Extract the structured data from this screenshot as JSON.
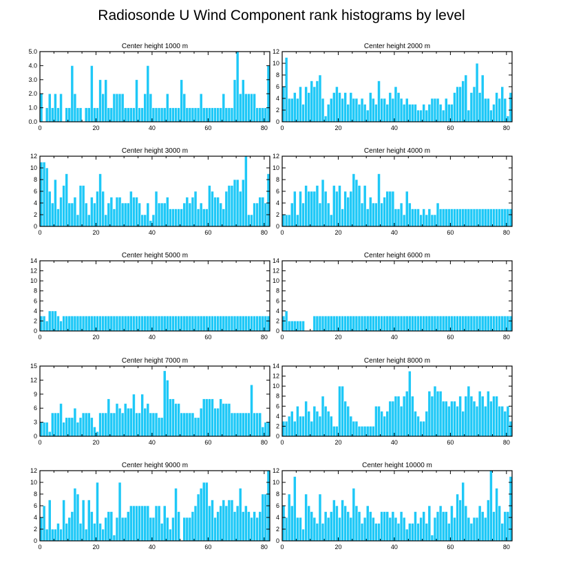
{
  "title": "Radiosonde U Wind Component rank histograms by level",
  "colors": {
    "bar": "#1ec8f7",
    "bar_edge": "#ffffff",
    "axis": "#000000"
  },
  "chart_data": [
    {
      "type": "bar",
      "title": "Center height 1000 m",
      "xlim": [
        0,
        82
      ],
      "xticks": [
        0,
        20,
        40,
        60,
        80
      ],
      "ylim": [
        0,
        5
      ],
      "yticks": [
        "0.0",
        "1.0",
        "2.0",
        "3.0",
        "4.0",
        "5.0"
      ],
      "ytick_values": [
        0,
        1,
        2,
        3,
        4,
        5
      ],
      "values": [
        2,
        0,
        1,
        2,
        1,
        2,
        1,
        2,
        0,
        1,
        1,
        4,
        2,
        1,
        1,
        0,
        1,
        1,
        4,
        1,
        1,
        3,
        2,
        3,
        1,
        1,
        2,
        2,
        2,
        2,
        1,
        1,
        1,
        1,
        3,
        1,
        1,
        2,
        4,
        2,
        1,
        1,
        1,
        1,
        1,
        2,
        1,
        1,
        1,
        1,
        3,
        2,
        1,
        1,
        1,
        1,
        1,
        2,
        1,
        1,
        1,
        1,
        1,
        1,
        1,
        2,
        1,
        1,
        1,
        3,
        5,
        2,
        3,
        2,
        2,
        2,
        2,
        1,
        1,
        1,
        1,
        4
      ]
    },
    {
      "type": "bar",
      "title": "Center height 2000 m",
      "xlim": [
        0,
        82
      ],
      "xticks": [
        0,
        20,
        40,
        60,
        80
      ],
      "ylim": [
        0,
        12
      ],
      "yticks": [
        "0",
        "2",
        "4",
        "6",
        "8",
        "10",
        "12"
      ],
      "ytick_values": [
        0,
        2,
        4,
        6,
        8,
        10,
        12
      ],
      "values": [
        6,
        11,
        4,
        4,
        5,
        4,
        6,
        3,
        6,
        5,
        7,
        6,
        7,
        8,
        4,
        1,
        3,
        4,
        5,
        6,
        5,
        4,
        5,
        3,
        5,
        4,
        4,
        3,
        4,
        3,
        2,
        5,
        4,
        3,
        7,
        4,
        4,
        3,
        5,
        4,
        6,
        5,
        4,
        3,
        4,
        3,
        3,
        3,
        2,
        2,
        3,
        2,
        3,
        4,
        4,
        4,
        3,
        2,
        4,
        3,
        3,
        5,
        6,
        6,
        7,
        8,
        2,
        5,
        6,
        10,
        5,
        8,
        4,
        4,
        2,
        3,
        5,
        4,
        6,
        4,
        1,
        5
      ]
    },
    {
      "type": "bar",
      "title": "Center height 3000 m",
      "xlim": [
        0,
        82
      ],
      "xticks": [
        0,
        20,
        40,
        60,
        80
      ],
      "ylim": [
        0,
        12
      ],
      "yticks": [
        "0",
        "2",
        "4",
        "6",
        "8",
        "10",
        "12"
      ],
      "ytick_values": [
        0,
        2,
        4,
        6,
        8,
        10,
        12
      ],
      "values": [
        11,
        11,
        10,
        6,
        4,
        8,
        3,
        5,
        7,
        9,
        4,
        4,
        5,
        2,
        7,
        7,
        4,
        2,
        5,
        4,
        6,
        9,
        6,
        2,
        4,
        5,
        3,
        5,
        5,
        4,
        4,
        4,
        6,
        5,
        5,
        4,
        2,
        2,
        4,
        1,
        2,
        6,
        4,
        4,
        4,
        5,
        3,
        3,
        3,
        3,
        3,
        4,
        5,
        4,
        5,
        6,
        3,
        4,
        3,
        3,
        7,
        6,
        5,
        5,
        4,
        3,
        6,
        7,
        7,
        8,
        8,
        6,
        8,
        12,
        2,
        2,
        4,
        4,
        5,
        5,
        4,
        9
      ]
    },
    {
      "type": "bar",
      "title": "Center height 4000 m",
      "xlim": [
        0,
        82
      ],
      "xticks": [
        0,
        20,
        40,
        60,
        80
      ],
      "ylim": [
        0,
        12
      ],
      "yticks": [
        "0",
        "2",
        "4",
        "6",
        "8",
        "10",
        "12"
      ],
      "ytick_values": [
        0,
        2,
        4,
        6,
        8,
        10,
        12
      ],
      "values": [
        2,
        2,
        2,
        4,
        6,
        2,
        6,
        4,
        7,
        6,
        6,
        6,
        7,
        4,
        8,
        6,
        4,
        2,
        7,
        6,
        7,
        3,
        6,
        5,
        6,
        9,
        8,
        7,
        4,
        7,
        3,
        5,
        4,
        4,
        9,
        4,
        5,
        6,
        6,
        6,
        3,
        3,
        4,
        2,
        6,
        4,
        3,
        3,
        3,
        2,
        3,
        2,
        3,
        2,
        2,
        4,
        3,
        3,
        3,
        3,
        3,
        3,
        3,
        3,
        3,
        3,
        3,
        3,
        3,
        3,
        3,
        3,
        3,
        3,
        3,
        3,
        3,
        3,
        3,
        3,
        3,
        3
      ]
    },
    {
      "type": "bar",
      "title": "Center height 5000 m",
      "xlim": [
        0,
        82
      ],
      "xticks": [
        0,
        20,
        40,
        60,
        80
      ],
      "ylim": [
        0,
        14
      ],
      "yticks": [
        "0",
        "2",
        "4",
        "6",
        "8",
        "10",
        "12",
        "14"
      ],
      "ytick_values": [
        0,
        2,
        4,
        6,
        8,
        10,
        12,
        14
      ],
      "values": [
        3,
        3,
        2,
        4,
        4,
        4,
        3,
        2,
        3,
        3,
        3,
        3,
        3,
        3,
        3,
        3,
        3,
        3,
        3,
        3,
        3,
        3,
        3,
        3,
        3,
        3,
        3,
        3,
        3,
        3,
        3,
        3,
        3,
        3,
        3,
        3,
        3,
        3,
        3,
        3,
        3,
        3,
        3,
        3,
        3,
        3,
        3,
        3,
        3,
        3,
        3,
        3,
        3,
        3,
        3,
        3,
        3,
        3,
        3,
        3,
        3,
        3,
        3,
        3,
        3,
        3,
        3,
        3,
        3,
        3,
        3,
        3,
        3,
        3,
        3,
        3,
        3,
        3,
        3,
        3,
        3,
        3
      ]
    },
    {
      "type": "bar",
      "title": "Center height 6000 m",
      "xlim": [
        0,
        82
      ],
      "xticks": [
        0,
        20,
        40,
        60,
        80
      ],
      "ylim": [
        0,
        14
      ],
      "yticks": [
        "0",
        "2",
        "4",
        "6",
        "8",
        "10",
        "12",
        "14"
      ],
      "ytick_values": [
        0,
        2,
        4,
        6,
        8,
        10,
        12,
        14
      ],
      "values": [
        3,
        4,
        2,
        2,
        2,
        2,
        2,
        2,
        0,
        0,
        0,
        3,
        3,
        3,
        3,
        3,
        3,
        3,
        3,
        3,
        3,
        3,
        3,
        3,
        3,
        3,
        3,
        3,
        3,
        3,
        3,
        3,
        3,
        3,
        3,
        3,
        3,
        3,
        3,
        3,
        3,
        3,
        3,
        3,
        3,
        3,
        3,
        3,
        3,
        3,
        3,
        3,
        3,
        3,
        3,
        3,
        3,
        3,
        3,
        3,
        3,
        3,
        3,
        3,
        3,
        3,
        3,
        3,
        3,
        3,
        3,
        3,
        3,
        3,
        3,
        3,
        3,
        3,
        3,
        3,
        3,
        3
      ]
    },
    {
      "type": "bar",
      "title": "Center height 7000 m",
      "xlim": [
        0,
        82
      ],
      "xticks": [
        0,
        20,
        40,
        60,
        80
      ],
      "ylim": [
        0,
        15
      ],
      "yticks": [
        "0",
        "3",
        "6",
        "9",
        "12",
        "15"
      ],
      "ytick_values": [
        0,
        3,
        6,
        9,
        12,
        15
      ],
      "values": [
        3,
        3,
        3,
        1,
        5,
        5,
        5,
        7,
        3,
        4,
        4,
        4,
        6,
        3,
        4,
        5,
        5,
        5,
        4,
        2,
        1,
        5,
        5,
        5,
        8,
        5,
        5,
        7,
        6,
        5,
        7,
        6,
        6,
        9,
        5,
        5,
        9,
        6,
        7,
        5,
        5,
        5,
        4,
        4,
        14,
        12,
        8,
        8,
        7,
        7,
        5,
        5,
        5,
        5,
        5,
        4,
        4,
        6,
        8,
        8,
        8,
        8,
        6,
        6,
        8,
        7,
        7,
        7,
        5,
        5,
        5,
        5,
        5,
        5,
        5,
        11,
        5,
        5,
        5,
        2,
        3,
        3
      ]
    },
    {
      "type": "bar",
      "title": "Center height 8000 m",
      "xlim": [
        0,
        82
      ],
      "xticks": [
        0,
        20,
        40,
        60,
        80
      ],
      "ylim": [
        0,
        14
      ],
      "yticks": [
        "0",
        "2",
        "4",
        "6",
        "8",
        "10",
        "12",
        "14"
      ],
      "ytick_values": [
        0,
        2,
        4,
        6,
        8,
        10,
        12,
        14
      ],
      "values": [
        3,
        3,
        4,
        5,
        3,
        6,
        4,
        4,
        7,
        5,
        3,
        6,
        5,
        4,
        8,
        6,
        5,
        4,
        2,
        2,
        10,
        10,
        7,
        6,
        4,
        3,
        3,
        2,
        2,
        2,
        2,
        2,
        2,
        6,
        6,
        5,
        4,
        5,
        7,
        7,
        8,
        8,
        6,
        8,
        9,
        13,
        8,
        5,
        4,
        3,
        3,
        5,
        9,
        8,
        10,
        9,
        9,
        7,
        7,
        6,
        7,
        7,
        6,
        8,
        5,
        8,
        10,
        8,
        7,
        6,
        9,
        8,
        6,
        9,
        7,
        8,
        8,
        6,
        6,
        5,
        6,
        3
      ]
    },
    {
      "type": "bar",
      "title": "Center height 9000 m",
      "xlim": [
        0,
        82
      ],
      "xticks": [
        0,
        20,
        40,
        60,
        80
      ],
      "ylim": [
        0,
        12
      ],
      "yticks": [
        "0",
        "2",
        "4",
        "6",
        "8",
        "10",
        "12"
      ],
      "ytick_values": [
        0,
        2,
        4,
        6,
        8,
        10,
        12
      ],
      "values": [
        4,
        6,
        2,
        7,
        2,
        2,
        3,
        2,
        7,
        3,
        4,
        5,
        9,
        8,
        3,
        7,
        2,
        7,
        5,
        3,
        10,
        3,
        2,
        4,
        5,
        5,
        1,
        4,
        10,
        4,
        4,
        5,
        6,
        6,
        6,
        6,
        6,
        6,
        6,
        4,
        4,
        6,
        6,
        3,
        6,
        4,
        2,
        4,
        9,
        5,
        0,
        4,
        4,
        4,
        5,
        6,
        8,
        9,
        10,
        10,
        6,
        7,
        4,
        5,
        6,
        7,
        6,
        7,
        7,
        5,
        6,
        9,
        5,
        6,
        5,
        4,
        5,
        4,
        5,
        8,
        8,
        12
      ]
    },
    {
      "type": "bar",
      "title": "Center height 10000 m",
      "xlim": [
        0,
        82
      ],
      "xticks": [
        0,
        20,
        40,
        60,
        80
      ],
      "ylim": [
        0,
        12
      ],
      "yticks": [
        "0",
        "2",
        "4",
        "6",
        "8",
        "10",
        "12"
      ],
      "ytick_values": [
        0,
        2,
        4,
        6,
        8,
        10,
        12
      ],
      "values": [
        6,
        4,
        8,
        6,
        11,
        4,
        4,
        2,
        8,
        6,
        5,
        4,
        3,
        8,
        3,
        5,
        4,
        5,
        7,
        6,
        4,
        7,
        6,
        5,
        4,
        9,
        6,
        5,
        3,
        4,
        6,
        5,
        4,
        3,
        3,
        5,
        5,
        5,
        4,
        5,
        4,
        3,
        5,
        4,
        2,
        3,
        3,
        5,
        3,
        4,
        5,
        3,
        6,
        1,
        4,
        5,
        6,
        5,
        5,
        3,
        6,
        4,
        8,
        7,
        10,
        6,
        4,
        3,
        4,
        4,
        6,
        5,
        4,
        7,
        12,
        5,
        9,
        6,
        3,
        5,
        5,
        11
      ]
    }
  ]
}
